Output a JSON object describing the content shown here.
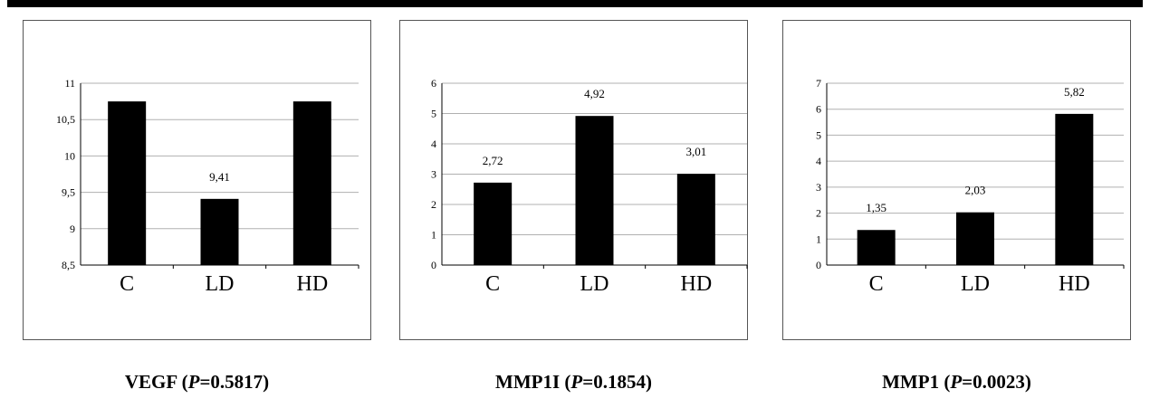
{
  "chart_data": [
    {
      "type": "bar",
      "categories": [
        "C",
        "LD",
        "HD"
      ],
      "values": [
        10.75,
        9.41,
        10.75
      ],
      "data_labels": [
        "",
        "9,41",
        ""
      ],
      "ylim": [
        8.5,
        11
      ],
      "yticks": [
        "8,5",
        "9",
        "9,5",
        "10",
        "10,5",
        "11"
      ],
      "ytick_values": [
        8.5,
        9,
        9.5,
        10,
        10.5,
        11
      ],
      "grid": true,
      "bar_color": "#000000",
      "caption": {
        "name": "VEGF (",
        "p": "P",
        "value": "=0.5817)"
      }
    },
    {
      "type": "bar",
      "categories": [
        "C",
        "LD",
        "HD"
      ],
      "values": [
        2.72,
        4.92,
        3.01
      ],
      "data_labels": [
        "2,72",
        "4,92",
        "3,01"
      ],
      "ylim": [
        0,
        6
      ],
      "yticks": [
        "0",
        "1",
        "2",
        "3",
        "4",
        "5",
        "6"
      ],
      "ytick_values": [
        0,
        1,
        2,
        3,
        4,
        5,
        6
      ],
      "grid": true,
      "bar_color": "#000000",
      "caption": {
        "name": "MMP1I (",
        "p": "P",
        "value": "=0.1854)"
      }
    },
    {
      "type": "bar",
      "categories": [
        "C",
        "LD",
        "HD"
      ],
      "values": [
        1.35,
        2.03,
        5.82
      ],
      "data_labels": [
        "1,35",
        "2,03",
        "5,82"
      ],
      "ylim": [
        0,
        7
      ],
      "yticks": [
        "0",
        "1",
        "2",
        "3",
        "4",
        "5",
        "6",
        "7"
      ],
      "ytick_values": [
        0,
        1,
        2,
        3,
        4,
        5,
        6,
        7
      ],
      "grid": true,
      "bar_color": "#000000",
      "caption": {
        "name": "MMP1 (",
        "p": "P",
        "value": "=0.0023)"
      }
    }
  ]
}
